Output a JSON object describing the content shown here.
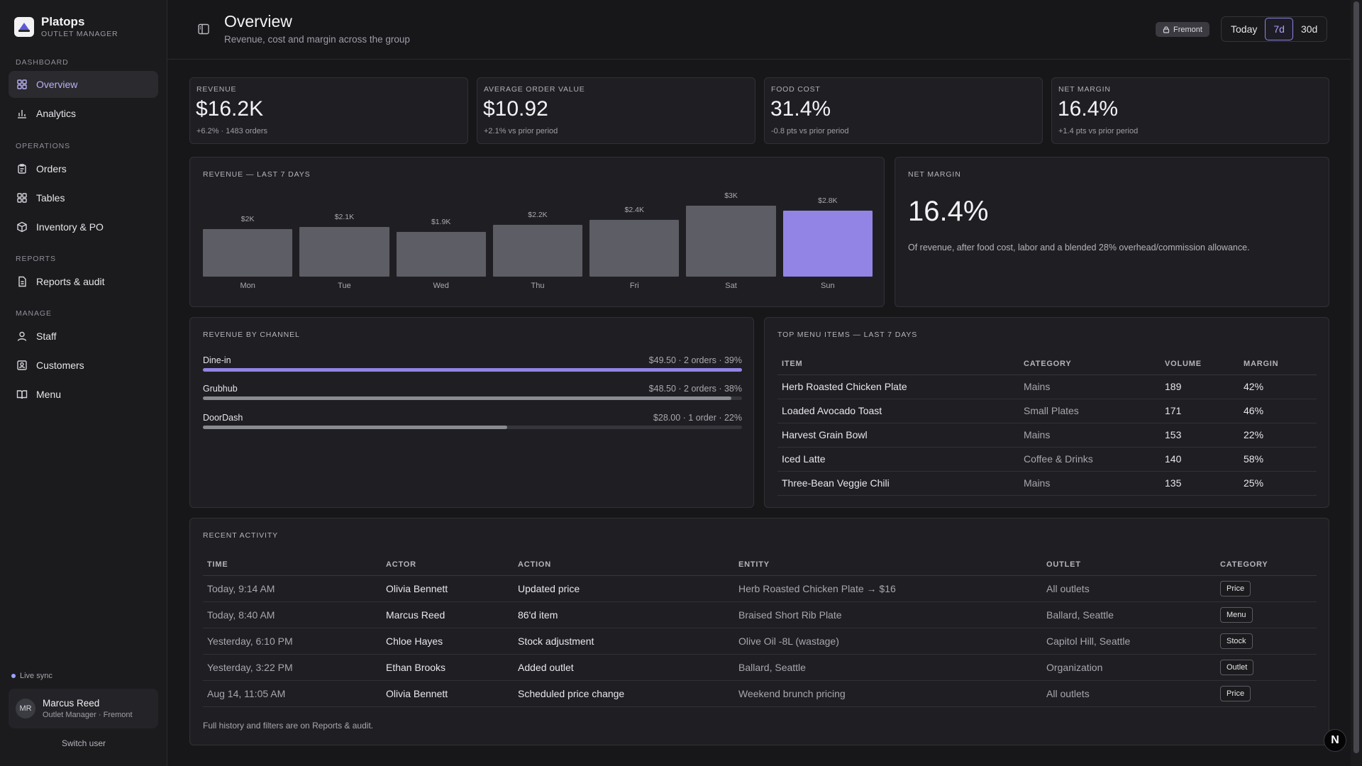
{
  "brand": {
    "name": "Platops",
    "subtitle": "OUTLET MANAGER"
  },
  "sidebar": {
    "sections": {
      "dashboard": "DASHBOARD",
      "operations": "OPERATIONS",
      "reports": "REPORTS",
      "manage": "MANAGE"
    },
    "items": [
      {
        "label": "Overview",
        "icon": "grid-icon",
        "active": true
      },
      {
        "label": "Analytics",
        "icon": "bar-chart-icon"
      },
      {
        "label": "Orders",
        "icon": "clipboard-icon"
      },
      {
        "label": "Tables",
        "icon": "grid-icon"
      },
      {
        "label": "Inventory & PO",
        "icon": "box-icon"
      },
      {
        "label": "Reports & audit",
        "icon": "file-icon"
      },
      {
        "label": "Staff",
        "icon": "user-icon"
      },
      {
        "label": "Customers",
        "icon": "contact-icon"
      },
      {
        "label": "Menu",
        "icon": "book-icon"
      }
    ],
    "live_sync": "Live sync",
    "user": {
      "initials": "MR",
      "name": "Marcus Reed",
      "role": "Outlet Manager · Fremont"
    },
    "switch_user": "Switch user"
  },
  "header": {
    "title": "Overview",
    "subtitle": "Revenue, cost and margin across the group",
    "outlet": "Fremont",
    "ranges": [
      "Today",
      "7d",
      "30d"
    ],
    "active_range": "7d"
  },
  "kpis": [
    {
      "label": "REVENUE",
      "value": "$16.2K",
      "delta": "+6.2% · 1483 orders"
    },
    {
      "label": "AVERAGE ORDER VALUE",
      "value": "$10.92",
      "delta": "+2.1% vs prior period"
    },
    {
      "label": "FOOD COST",
      "value": "31.4%",
      "delta": "-0.8 pts vs prior period"
    },
    {
      "label": "NET MARGIN",
      "value": "16.4%",
      "delta": "+1.4 pts vs prior period"
    }
  ],
  "revenue_chart": {
    "title": "REVENUE — LAST 7 DAYS"
  },
  "chart_data": {
    "type": "bar",
    "categories": [
      "Mon",
      "Tue",
      "Wed",
      "Thu",
      "Fri",
      "Sat",
      "Sun"
    ],
    "value_labels": [
      "$2K",
      "$2.1K",
      "$1.9K",
      "$2.2K",
      "$2.4K",
      "$3K",
      "$2.8K"
    ],
    "values": [
      2.0,
      2.1,
      1.9,
      2.2,
      2.4,
      3.0,
      2.8
    ],
    "highlight_index": 6,
    "title": "REVENUE — LAST 7 DAYS",
    "colors": {
      "bar": "#5d5d65",
      "highlight": "#9184e4"
    }
  },
  "net_margin": {
    "title": "NET MARGIN",
    "value": "16.4%",
    "note": "Of revenue, after food cost, labor and a blended 28% overhead/commission allowance."
  },
  "channels": {
    "title": "REVENUE BY CHANNEL",
    "rows": [
      {
        "name": "Dine-in",
        "meta": "$49.50 · 2 orders · 39%",
        "share": 1.0,
        "color": "#9184e4"
      },
      {
        "name": "Grubhub",
        "meta": "$48.50 · 2 orders · 38%",
        "share": 0.98,
        "color": "#8a8a93"
      },
      {
        "name": "DoorDash",
        "meta": "$28.00 · 1 order · 22%",
        "share": 0.565,
        "color": "#8a8a93"
      }
    ]
  },
  "top_items": {
    "title": "TOP MENU ITEMS — LAST 7 DAYS",
    "columns": [
      "ITEM",
      "CATEGORY",
      "VOLUME",
      "MARGIN"
    ],
    "rows": [
      [
        "Herb Roasted Chicken Plate",
        "Mains",
        "189",
        "42%"
      ],
      [
        "Loaded Avocado Toast",
        "Small Plates",
        "171",
        "46%"
      ],
      [
        "Harvest Grain Bowl",
        "Mains",
        "153",
        "22%"
      ],
      [
        "Iced Latte",
        "Coffee & Drinks",
        "140",
        "58%"
      ],
      [
        "Three-Bean Veggie Chili",
        "Mains",
        "135",
        "25%"
      ]
    ]
  },
  "activity": {
    "title": "RECENT ACTIVITY",
    "columns": [
      "TIME",
      "ACTOR",
      "ACTION",
      "ENTITY",
      "OUTLET",
      "CATEGORY"
    ],
    "rows": [
      [
        "Today, 9:14 AM",
        "Olivia Bennett",
        "Updated price",
        "Herb Roasted Chicken Plate → $16",
        "All outlets",
        "Price"
      ],
      [
        "Today, 8:40 AM",
        "Marcus Reed",
        "86'd item",
        "Braised Short Rib Plate",
        "Ballard, Seattle",
        "Menu"
      ],
      [
        "Yesterday, 6:10 PM",
        "Chloe Hayes",
        "Stock adjustment",
        "Olive Oil -8L (wastage)",
        "Capitol Hill, Seattle",
        "Stock"
      ],
      [
        "Yesterday, 3:22 PM",
        "Ethan Brooks",
        "Added outlet",
        "Ballard, Seattle",
        "Organization",
        "Outlet"
      ],
      [
        "Aug 14, 11:05 AM",
        "Olivia Bennett",
        "Scheduled price change",
        "Weekend brunch pricing",
        "All outlets",
        "Price"
      ]
    ],
    "footnote": "Full history and filters are on Reports & audit."
  },
  "fab": {
    "label": "N"
  }
}
